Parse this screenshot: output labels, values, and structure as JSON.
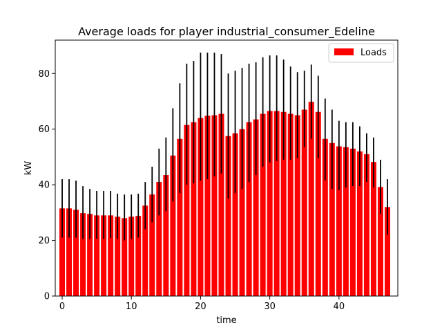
{
  "chart_data": {
    "type": "bar",
    "title": "Average loads for player industrial_consumer_Edeline",
    "xlabel": "time",
    "ylabel": "kW",
    "xlim": [
      -1,
      48.5
    ],
    "ylim": [
      0,
      92
    ],
    "xticks": [
      0,
      10,
      20,
      30,
      40
    ],
    "yticks": [
      0,
      20,
      40,
      60,
      80
    ],
    "grid": false,
    "legend": "top-right",
    "x": [
      0,
      1,
      2,
      3,
      4,
      5,
      6,
      7,
      8,
      9,
      10,
      11,
      12,
      13,
      14,
      15,
      16,
      17,
      18,
      19,
      20,
      21,
      22,
      23,
      24,
      25,
      26,
      27,
      28,
      29,
      30,
      31,
      32,
      33,
      34,
      35,
      36,
      37,
      38,
      39,
      40,
      41,
      42,
      43,
      44,
      45,
      46,
      47
    ],
    "series": [
      {
        "name": "Loads",
        "color": "#ff0000",
        "values": [
          31.5,
          31.5,
          31.0,
          29.8,
          29.5,
          29.0,
          29.0,
          29.0,
          28.5,
          28.0,
          28.5,
          28.8,
          32.5,
          36.5,
          41.0,
          43.5,
          50.5,
          56.5,
          61.5,
          62.5,
          64.0,
          64.8,
          65.0,
          65.5,
          57.5,
          58.5,
          60.0,
          62.5,
          63.5,
          65.5,
          66.5,
          66.5,
          66.2,
          65.5,
          65.0,
          67.0,
          69.8,
          66.2,
          56.5,
          55.0,
          53.8,
          53.5,
          53.0,
          52.0,
          51.0,
          48.2,
          39.2,
          32.0
        ],
        "error_low": [
          21.0,
          21.0,
          21.0,
          20.5,
          20.5,
          20.5,
          20.5,
          20.8,
          20.5,
          20.0,
          20.5,
          21.0,
          24.0,
          26.5,
          29.0,
          30.5,
          34.0,
          37.0,
          40.0,
          40.5,
          41.5,
          42.0,
          43.0,
          44.0,
          35.0,
          37.0,
          38.5,
          41.0,
          43.5,
          46.5,
          48.0,
          48.5,
          49.0,
          49.0,
          49.5,
          53.5,
          56.5,
          49.5,
          41.5,
          38.5,
          38.0,
          39.0,
          39.5,
          39.5,
          41.0,
          39.0,
          29.5,
          22.0
        ],
        "error_high": [
          42.0,
          42.0,
          41.5,
          39.5,
          38.5,
          37.8,
          37.8,
          37.8,
          36.8,
          36.5,
          36.5,
          36.8,
          41.0,
          46.5,
          53.0,
          57.0,
          67.5,
          76.5,
          83.5,
          84.5,
          87.5,
          87.5,
          87.5,
          87.0,
          80.0,
          81.0,
          82.0,
          83.5,
          84.0,
          85.8,
          86.5,
          86.5,
          85.0,
          82.5,
          80.5,
          81.0,
          83.2,
          79.2,
          71.0,
          67.0,
          63.0,
          62.5,
          62.5,
          61.0,
          58.5,
          57.0,
          49.0,
          42.0
        ]
      }
    ],
    "error_bar_color": "#000000"
  }
}
